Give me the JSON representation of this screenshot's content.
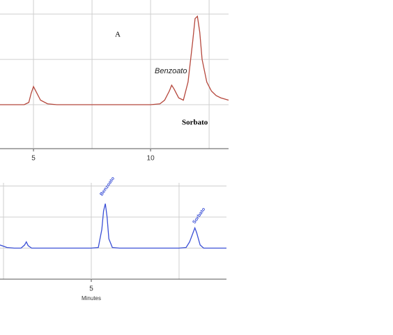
{
  "chart_data": [
    {
      "type": "line",
      "x": [
        3.57,
        4.6,
        4.8,
        4.9,
        5.0,
        5.1,
        5.3,
        5.6,
        6,
        7,
        8,
        9,
        10,
        10.4,
        10.6,
        10.8,
        10.9,
        11.0,
        11.2,
        11.4,
        11.6,
        11.8,
        11.9,
        12.0,
        12.1,
        12.2,
        12.4,
        12.6,
        12.8,
        13.0,
        13.33
      ],
      "series": [
        {
          "color": "#b5473c",
          "values": [
            1,
            1,
            1.05,
            1.25,
            1.4,
            1.3,
            1.1,
            1.02,
            1,
            1,
            1,
            1,
            1,
            1.02,
            1.1,
            1.3,
            1.43,
            1.35,
            1.15,
            1.1,
            1.5,
            2.4,
            2.9,
            2.95,
            2.6,
            2.0,
            1.5,
            1.3,
            1.2,
            1.15,
            1.1
          ]
        }
      ],
      "xlim": [
        3.57,
        13.33
      ],
      "xticks": [
        5,
        10
      ],
      "xgrid": [
        7.5,
        12.5
      ],
      "ylim": [
        0.03,
        3.31
      ],
      "yticks": [
        1,
        2,
        3
      ],
      "grid": true,
      "annotations": [
        "A",
        "Benzoato",
        "Sorbato"
      ]
    },
    {
      "type": "line",
      "x": [
        -0.2,
        0.2,
        0.6,
        1.0,
        1.2,
        1.3,
        1.4,
        1.6,
        2,
        3,
        4,
        5,
        5.4,
        5.6,
        5.7,
        5.8,
        5.9,
        6.0,
        6.2,
        6.6,
        8,
        9,
        10,
        10.4,
        10.6,
        10.8,
        10.9,
        11.0,
        11.2,
        11.4,
        12,
        12.7
      ],
      "series": [
        {
          "color": "#3a4fd6",
          "values": [
            1.1,
            1.02,
            1,
            1,
            1.1,
            1.2,
            1.08,
            1,
            1,
            1,
            1,
            1,
            1.02,
            1.6,
            2.2,
            2.43,
            2.0,
            1.3,
            1.02,
            1,
            1,
            1,
            1,
            1.02,
            1.2,
            1.5,
            1.65,
            1.5,
            1.1,
            1,
            1,
            1
          ]
        }
      ],
      "xlim": [
        -0.2,
        12.7
      ],
      "xticks": [
        5
      ],
      "xgrid": [
        0,
        10
      ],
      "ylim": [
        0,
        3.1
      ],
      "yticks": [
        1,
        2,
        3
      ],
      "grid": true,
      "xlabel": "Minutes",
      "annotations": [
        "Benzoato",
        "Sorbato"
      ]
    }
  ]
}
